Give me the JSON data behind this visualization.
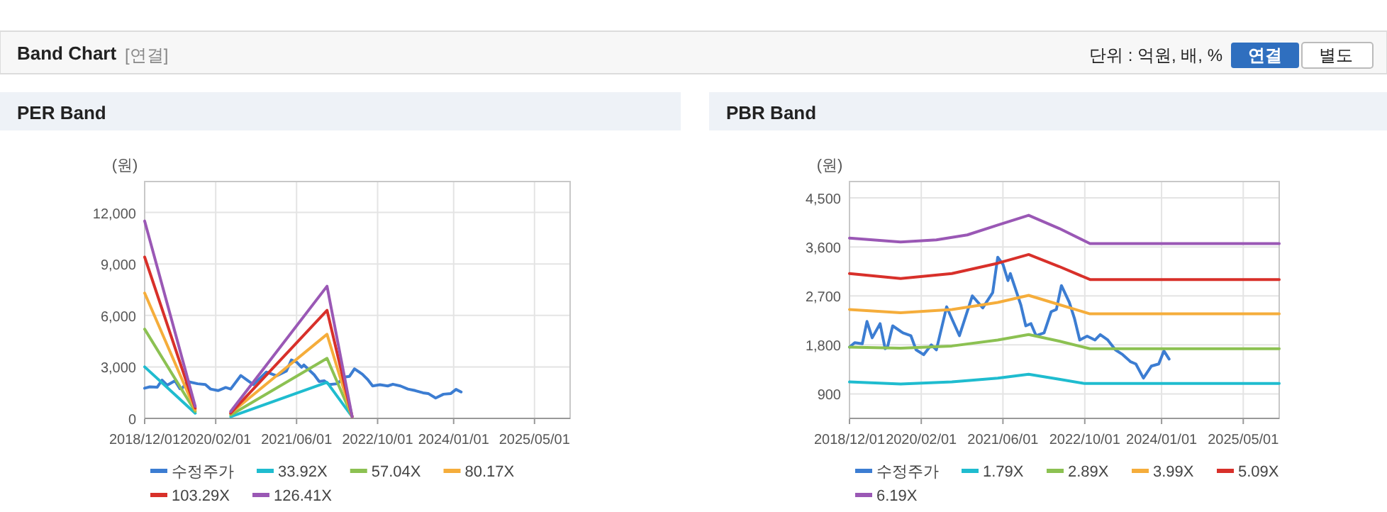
{
  "chart_data": [
    {
      "type": "other",
      "title": "Band Chart",
      "annotations": [
        "[연결]",
        "단위 : 억원, 배, %",
        "연결",
        "별도"
      ]
    },
    {
      "type": "line",
      "title": "PER Band",
      "ylabel": "(원)",
      "grid": true,
      "legend": "bottom",
      "xlim": [
        "2018-12-01",
        "2025-12-01"
      ],
      "ylim": [
        0,
        13800
      ],
      "xticks": [
        {
          "value": "2018-12-01",
          "label": "2018/12/01"
        },
        {
          "value": "2020-02-01",
          "label": "2020/02/01"
        },
        {
          "value": "2021-06-01",
          "label": "2021/06/01"
        },
        {
          "value": "2022-10-01",
          "label": "2022/10/01"
        },
        {
          "value": "2024-01-01",
          "label": "2024/01/01"
        },
        {
          "value": "2025-05-01",
          "label": "2025/05/01"
        }
      ],
      "yticks": [
        0,
        {
          "value": 3000,
          "label": "3,000"
        },
        {
          "value": 6000,
          "label": "6,000"
        },
        {
          "value": 9000,
          "label": "9,000"
        },
        {
          "value": 12000,
          "label": "12,000"
        }
      ],
      "series": [
        {
          "name": "수정주가",
          "color": "#3c7dd2",
          "x": [
            "2018-12",
            "2019-01",
            "2019-02-15",
            "2019-03-15",
            "2019-04-15",
            "2019-06",
            "2019-07",
            "2019-07-15",
            "2019-08-15",
            "2019-10-15",
            "2019-12",
            "2020-01",
            "2020-02-15",
            "2020-04",
            "2020-05",
            "2020-07",
            "2020-08",
            "2020-09-15",
            "2020-12",
            "2021-02",
            "2021-04",
            "2021-05",
            "2021-06",
            "2021-07",
            "2021-07-15",
            "2021-09-15",
            "2021-10-15",
            "2021-11-15",
            "2021-12-15",
            "2022-02",
            "2022-03-15",
            "2022-04-15",
            "2022-05-15",
            "2022-07",
            "2022-08",
            "2022-09",
            "2022-10-15",
            "2022-12",
            "2023-01",
            "2023-02-15",
            "2023-04",
            "2023-05-15",
            "2023-07",
            "2023-08",
            "2023-09-15",
            "2023-11",
            "2023-12-15",
            "2024-01-15",
            "2024-02-15"
          ],
          "values": [
            1760,
            1840,
            1820,
            2230,
            1930,
            2190,
            1730,
            1760,
            2150,
            2020,
            1970,
            1710,
            1620,
            1800,
            1710,
            2500,
            2280,
            1970,
            2700,
            2480,
            2760,
            3410,
            3280,
            2980,
            3110,
            2540,
            2150,
            2190,
            1970,
            2020,
            2410,
            2450,
            2890,
            2580,
            2280,
            1890,
            1960,
            1890,
            1990,
            1890,
            1710,
            1620,
            1490,
            1450,
            1190,
            1410,
            1450,
            1690,
            1540
          ]
        },
        {
          "name": "33.92X",
          "color": "#1fbccf",
          "x": [
            "2018-12-01",
            "2019-10-01"
          ],
          "values": [
            3000,
            300
          ]
        },
        {
          "name": "57.04X",
          "color": "#8cc152",
          "x": [
            "2018-12-01",
            "2019-10-01"
          ],
          "values": [
            5200,
            400
          ]
        },
        {
          "name": "80.17X",
          "color": "#f5ad3b",
          "x": [
            "2018-12-01",
            "2019-10-01"
          ],
          "values": [
            7300,
            500
          ]
        },
        {
          "name": "103.29X",
          "color": "#d8302a",
          "x": [
            "2018-12-01",
            "2019-10-01"
          ],
          "values": [
            9400,
            600
          ]
        },
        {
          "name": "126.41X",
          "color": "#9a58b5",
          "x": [
            "2018-12-01",
            "2019-10-01"
          ],
          "values": [
            11500,
            700
          ]
        },
        {
          "color": "#1fbccf",
          "x": [
            "2020-05-01",
            "2021-12-01",
            "2022-05-01"
          ],
          "values": [
            100,
            2100,
            100
          ]
        },
        {
          "color": "#8cc152",
          "x": [
            "2020-05-01",
            "2021-12-01",
            "2022-05-01"
          ],
          "values": [
            200,
            3500,
            100
          ]
        },
        {
          "color": "#f5ad3b",
          "x": [
            "2020-05-01",
            "2021-12-01",
            "2022-05-01"
          ],
          "values": [
            300,
            4900,
            100
          ]
        },
        {
          "color": "#d8302a",
          "x": [
            "2020-05-01",
            "2021-12-01",
            "2022-05-01"
          ],
          "values": [
            300,
            6300,
            100
          ]
        },
        {
          "color": "#9a58b5",
          "x": [
            "2020-05-01",
            "2021-12-01",
            "2022-05-01"
          ],
          "values": [
            400,
            7700,
            100
          ]
        }
      ]
    },
    {
      "type": "line",
      "title": "PBR Band",
      "ylabel": "(원)",
      "grid": true,
      "legend": "bottom",
      "xlim": [
        "2018-12-01",
        "2025-12-01"
      ],
      "ylim": [
        450,
        4800
      ],
      "xticks": [
        {
          "value": "2018-12-01",
          "label": "2018/12/01"
        },
        {
          "value": "2020-02-01",
          "label": "2020/02/01"
        },
        {
          "value": "2021-06-01",
          "label": "2021/06/01"
        },
        {
          "value": "2022-10-01",
          "label": "2022/10/01"
        },
        {
          "value": "2024-01-01",
          "label": "2024/01/01"
        },
        {
          "value": "2025-05-01",
          "label": "2025/05/01"
        }
      ],
      "yticks": [
        900,
        {
          "value": 1800,
          "label": "1,800"
        },
        {
          "value": 2700,
          "label": "2,700"
        },
        {
          "value": 3600,
          "label": "3,600"
        },
        {
          "value": 4500,
          "label": "4,500"
        }
      ],
      "series": [
        {
          "name": "수정주가",
          "color": "#3c7dd2",
          "x": [
            "2018-12",
            "2019-01",
            "2019-02-15",
            "2019-03-15",
            "2019-04-15",
            "2019-06",
            "2019-07",
            "2019-07-15",
            "2019-08-15",
            "2019-10-15",
            "2019-12",
            "2020-01",
            "2020-02-15",
            "2020-04",
            "2020-05",
            "2020-07",
            "2020-08",
            "2020-09-15",
            "2020-12",
            "2021-02",
            "2021-04",
            "2021-05",
            "2021-06",
            "2021-07",
            "2021-07-15",
            "2021-09-15",
            "2021-10-15",
            "2021-11-15",
            "2021-12-15",
            "2022-02",
            "2022-03-15",
            "2022-04-15",
            "2022-05-15",
            "2022-07",
            "2022-08",
            "2022-09",
            "2022-10-15",
            "2022-12",
            "2023-01",
            "2023-02-15",
            "2023-04",
            "2023-05-15",
            "2023-07",
            "2023-08",
            "2023-09-15",
            "2023-11",
            "2023-12-15",
            "2024-01-15",
            "2024-02-15"
          ],
          "values": [
            1760,
            1840,
            1820,
            2230,
            1930,
            2190,
            1730,
            1760,
            2150,
            2020,
            1970,
            1710,
            1620,
            1800,
            1710,
            2500,
            2280,
            1970,
            2700,
            2480,
            2760,
            3410,
            3280,
            2980,
            3110,
            2540,
            2150,
            2190,
            1970,
            2020,
            2410,
            2450,
            2890,
            2580,
            2280,
            1890,
            1960,
            1890,
            1990,
            1890,
            1710,
            1620,
            1490,
            1450,
            1190,
            1410,
            1450,
            1690,
            1540
          ]
        },
        {
          "name": "1.79X",
          "color": "#1fbccf",
          "x": [
            "2018-12-01",
            "2019-10-01",
            "2020-08-01",
            "2021-05-01",
            "2021-11-01",
            "2022-05-01",
            "2022-10-01",
            "2025-12-01"
          ],
          "values": [
            1120,
            1080,
            1120,
            1190,
            1260,
            1170,
            1090,
            1090
          ]
        },
        {
          "name": "2.89X",
          "color": "#8cc152",
          "x": [
            "2018-12-01",
            "2019-10-01",
            "2020-08-01",
            "2021-05-01",
            "2021-11-01",
            "2022-05-01",
            "2022-11-01",
            "2025-12-01"
          ],
          "values": [
            1760,
            1740,
            1780,
            1890,
            1990,
            1870,
            1730,
            1730
          ]
        },
        {
          "name": "3.99X",
          "color": "#f5ad3b",
          "x": [
            "2018-12-01",
            "2019-10-01",
            "2020-08-01",
            "2021-05-01",
            "2021-11-01",
            "2022-05-01",
            "2022-11-01",
            "2025-12-01"
          ],
          "values": [
            2450,
            2390,
            2450,
            2580,
            2710,
            2540,
            2370,
            2370
          ]
        },
        {
          "name": "5.09X",
          "color": "#d8302a",
          "x": [
            "2018-12-01",
            "2019-10-01",
            "2020-08-01",
            "2021-05-01",
            "2021-11-01",
            "2022-05-01",
            "2022-11-01",
            "2025-12-01"
          ],
          "values": [
            3110,
            3020,
            3110,
            3300,
            3460,
            3240,
            3000,
            3000
          ]
        },
        {
          "name": "6.19X",
          "color": "#9a58b5",
          "x": [
            "2018-12-01",
            "2019-10-01",
            "2020-05-01",
            "2020-11-01",
            "2021-05-01",
            "2021-11-01",
            "2022-05-01",
            "2022-11-01",
            "2025-12-01"
          ],
          "values": [
            3760,
            3690,
            3730,
            3820,
            4000,
            4180,
            3940,
            3660,
            3660
          ]
        }
      ]
    }
  ]
}
